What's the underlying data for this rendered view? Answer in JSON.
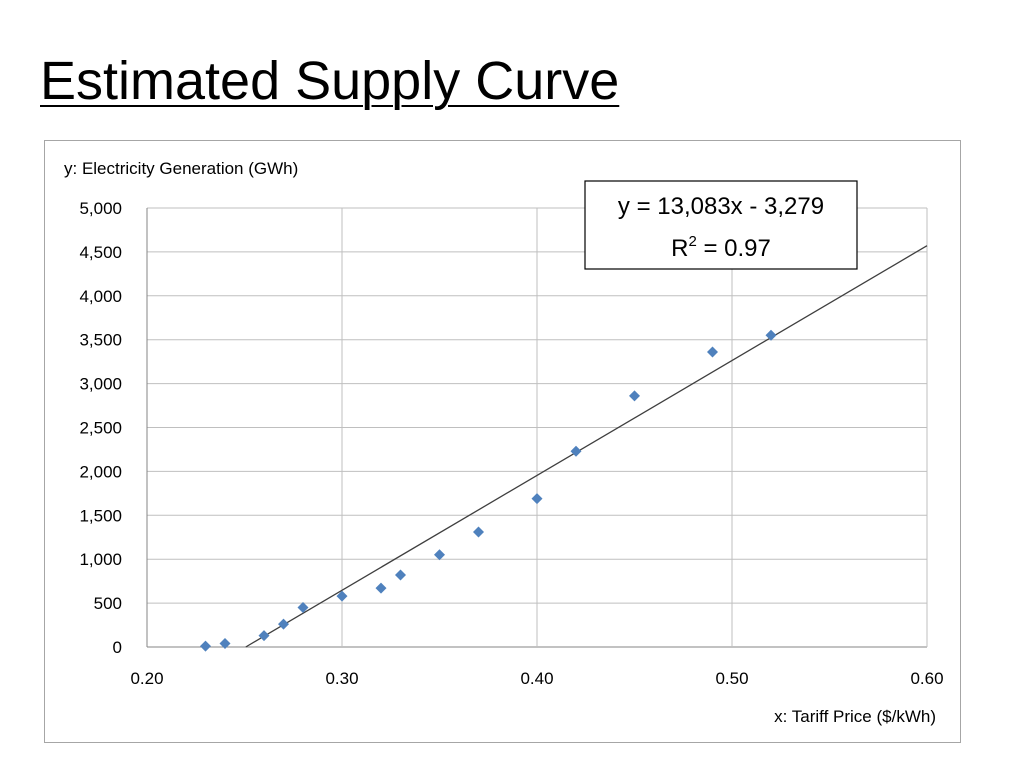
{
  "page": {
    "title": "Estimated Supply Curve"
  },
  "chart_data": {
    "type": "scatter",
    "title": "",
    "xlabel": "x: Tariff Price ($/kWh)",
    "ylabel": "y: Electricity Generation (GWh)",
    "xlim": [
      0.2,
      0.6
    ],
    "ylim": [
      0,
      5000
    ],
    "x_ticks": [
      "0.20",
      "0.30",
      "0.40",
      "0.50",
      "0.60"
    ],
    "y_ticks": [
      "0",
      "500",
      "1,000",
      "1,500",
      "2,000",
      "2,500",
      "3,000",
      "3,500",
      "4,000",
      "4,500",
      "5,000"
    ],
    "grid": true,
    "marker_color": "#4f81bd",
    "series": [
      {
        "points": [
          {
            "x": 0.23,
            "y": 10
          },
          {
            "x": 0.24,
            "y": 40
          },
          {
            "x": 0.26,
            "y": 130
          },
          {
            "x": 0.27,
            "y": 260
          },
          {
            "x": 0.28,
            "y": 450
          },
          {
            "x": 0.3,
            "y": 580
          },
          {
            "x": 0.32,
            "y": 670
          },
          {
            "x": 0.33,
            "y": 820
          },
          {
            "x": 0.35,
            "y": 1050
          },
          {
            "x": 0.37,
            "y": 1310
          },
          {
            "x": 0.4,
            "y": 1690
          },
          {
            "x": 0.42,
            "y": 2230
          },
          {
            "x": 0.45,
            "y": 2860
          },
          {
            "x": 0.49,
            "y": 3360
          },
          {
            "x": 0.52,
            "y": 3550
          }
        ]
      }
    ],
    "trendline": {
      "slope": 13083,
      "intercept": -3279,
      "equation": "y = 13,083x - 3,279",
      "r2_prefix": "R",
      "r2_sup": "2",
      "r2_value": " = 0.97"
    }
  }
}
